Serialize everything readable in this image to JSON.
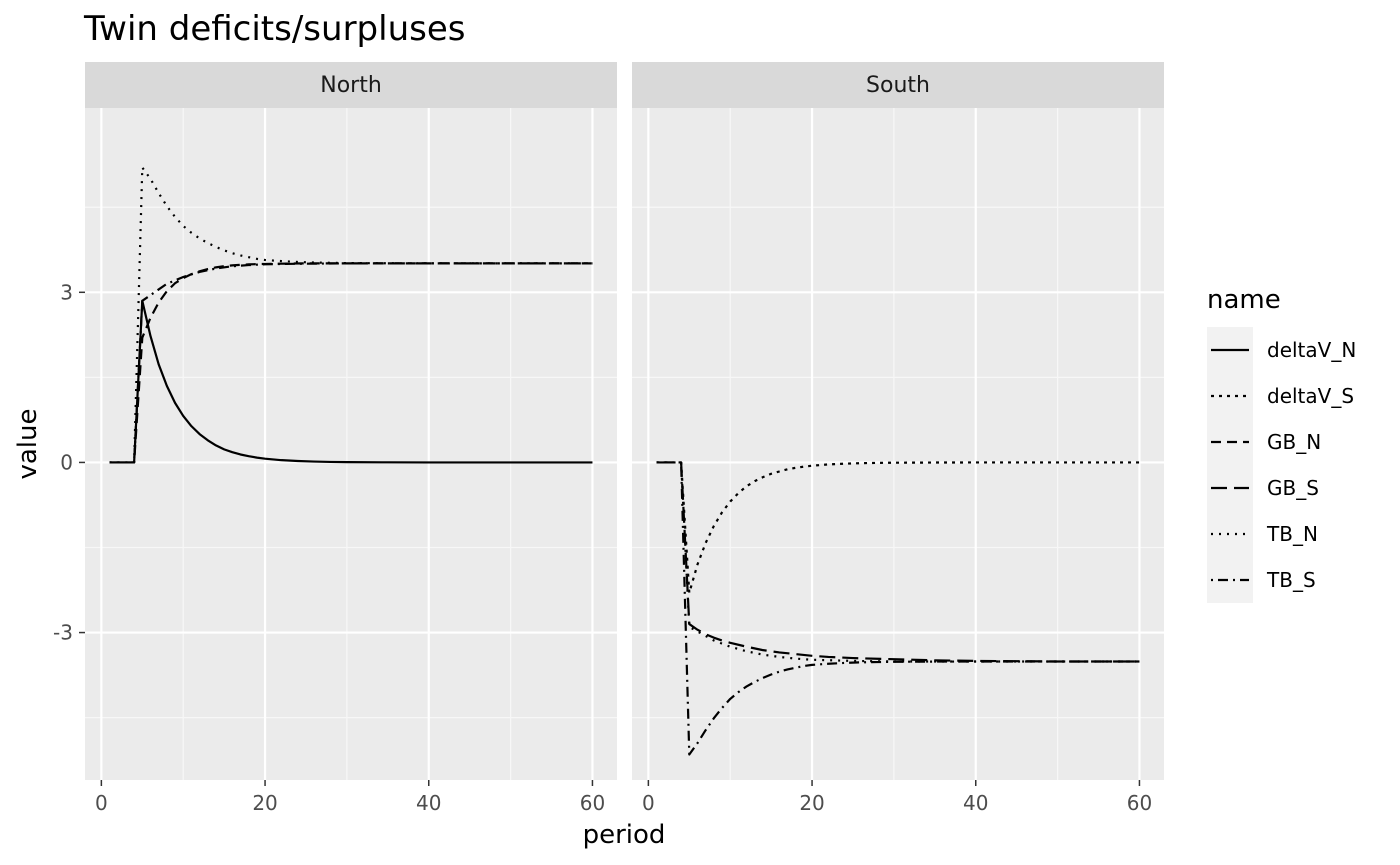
{
  "chart_data": {
    "type": "line",
    "title": "Twin deficits/surpluses",
    "xlabel": "period",
    "ylabel": "value",
    "xlim": [
      -2,
      63
    ],
    "ylim": [
      -5.6,
      6.25
    ],
    "x_ticks": [
      0,
      20,
      40,
      60
    ],
    "x_minor_ticks": [
      10,
      30,
      50
    ],
    "y_ticks": [
      -3,
      0,
      3
    ],
    "y_minor_ticks": [
      -4.5,
      -1.5,
      1.5,
      4.5
    ],
    "y_tick_labels": [
      "-3",
      "0",
      "3"
    ],
    "grid": true,
    "legend": {
      "title": "name",
      "position": "right"
    },
    "facets": [
      {
        "label": "North",
        "series": [
          {
            "name": "deltaV_N",
            "dash": "solid",
            "points": [
              [
                1,
                0
              ],
              [
                2,
                0
              ],
              [
                3,
                0
              ],
              [
                4,
                0
              ],
              [
                5,
                2.85
              ],
              [
                6,
                2.23
              ],
              [
                7,
                1.73
              ],
              [
                8,
                1.35
              ],
              [
                9,
                1.05
              ],
              [
                10,
                0.82
              ],
              [
                11,
                0.64
              ],
              [
                12,
                0.5
              ],
              [
                13,
                0.39
              ],
              [
                14,
                0.3
              ],
              [
                15,
                0.23
              ],
              [
                16,
                0.18
              ],
              [
                17,
                0.14
              ],
              [
                18,
                0.11
              ],
              [
                19,
                0.085
              ],
              [
                20,
                0.066
              ],
              [
                22,
                0.04
              ],
              [
                24,
                0.025
              ],
              [
                26,
                0.015
              ],
              [
                28,
                0.009
              ],
              [
                30,
                0.005
              ],
              [
                35,
                0.002
              ],
              [
                40,
                0
              ],
              [
                45,
                0
              ],
              [
                50,
                0
              ],
              [
                55,
                0
              ],
              [
                60,
                0
              ]
            ]
          },
          {
            "name": "deltaV_S",
            "dash": "dotted",
            "points": []
          },
          {
            "name": "GB_N",
            "dash": "dashed",
            "points": [
              [
                1,
                0
              ],
              [
                2,
                0
              ],
              [
                3,
                0
              ],
              [
                4,
                0
              ],
              [
                5,
                2.2
              ],
              [
                6,
                2.55
              ],
              [
                7,
                2.82
              ],
              [
                8,
                3.02
              ],
              [
                9,
                3.16
              ],
              [
                10,
                3.25
              ],
              [
                11,
                3.32
              ],
              [
                12,
                3.37
              ],
              [
                13,
                3.41
              ],
              [
                14,
                3.44
              ],
              [
                15,
                3.46
              ],
              [
                16,
                3.475
              ],
              [
                17,
                3.485
              ],
              [
                18,
                3.492
              ],
              [
                19,
                3.497
              ],
              [
                20,
                3.5
              ],
              [
                22,
                3.505
              ],
              [
                25,
                3.51
              ],
              [
                30,
                3.51
              ],
              [
                40,
                3.51
              ],
              [
                50,
                3.51
              ],
              [
                60,
                3.51
              ]
            ]
          },
          {
            "name": "GB_S",
            "dash": "longdash",
            "points": []
          },
          {
            "name": "TB_N",
            "dash": "dotted-fine",
            "points": [
              [
                1,
                0
              ],
              [
                2,
                0
              ],
              [
                3,
                0
              ],
              [
                4,
                0
              ],
              [
                5,
                5.2
              ],
              [
                6,
                5.0
              ],
              [
                7,
                4.75
              ],
              [
                8,
                4.52
              ],
              [
                9,
                4.33
              ],
              [
                10,
                4.17
              ],
              [
                11,
                4.05
              ],
              [
                12,
                3.95
              ],
              [
                13,
                3.87
              ],
              [
                14,
                3.8
              ],
              [
                15,
                3.74
              ],
              [
                16,
                3.69
              ],
              [
                17,
                3.65
              ],
              [
                18,
                3.62
              ],
              [
                19,
                3.59
              ],
              [
                20,
                3.57
              ],
              [
                22,
                3.55
              ],
              [
                24,
                3.535
              ],
              [
                26,
                3.525
              ],
              [
                28,
                3.52
              ],
              [
                30,
                3.515
              ],
              [
                35,
                3.512
              ],
              [
                40,
                3.51
              ],
              [
                50,
                3.51
              ],
              [
                60,
                3.51
              ]
            ]
          },
          {
            "name": "TB_S",
            "dash": "dotdash",
            "points": [
              [
                1,
                0
              ],
              [
                2,
                0
              ],
              [
                3,
                0
              ],
              [
                4,
                0
              ],
              [
                5,
                2.85
              ],
              [
                6,
                2.95
              ],
              [
                8,
                3.15
              ],
              [
                10,
                3.27
              ],
              [
                12,
                3.36
              ],
              [
                14,
                3.42
              ],
              [
                16,
                3.46
              ],
              [
                18,
                3.48
              ],
              [
                20,
                3.495
              ],
              [
                25,
                3.505
              ],
              [
                30,
                3.51
              ],
              [
                40,
                3.51
              ],
              [
                50,
                3.51
              ],
              [
                60,
                3.51
              ]
            ]
          }
        ]
      },
      {
        "label": "South",
        "series": [
          {
            "name": "deltaV_N",
            "dash": "solid",
            "points": []
          },
          {
            "name": "deltaV_S",
            "dash": "dotted",
            "points": [
              [
                1,
                0
              ],
              [
                2,
                0
              ],
              [
                3,
                0
              ],
              [
                4,
                0
              ],
              [
                5,
                -2.3
              ],
              [
                6,
                -1.8
              ],
              [
                7,
                -1.42
              ],
              [
                8,
                -1.12
              ],
              [
                9,
                -0.88
              ],
              [
                10,
                -0.69
              ],
              [
                11,
                -0.54
              ],
              [
                12,
                -0.42
              ],
              [
                13,
                -0.33
              ],
              [
                14,
                -0.26
              ],
              [
                15,
                -0.2
              ],
              [
                16,
                -0.16
              ],
              [
                17,
                -0.12
              ],
              [
                18,
                -0.095
              ],
              [
                19,
                -0.074
              ],
              [
                20,
                -0.058
              ],
              [
                22,
                -0.035
              ],
              [
                24,
                -0.022
              ],
              [
                26,
                -0.013
              ],
              [
                28,
                -0.008
              ],
              [
                30,
                -0.005
              ],
              [
                35,
                -0.002
              ],
              [
                40,
                0
              ],
              [
                50,
                0
              ],
              [
                60,
                0
              ]
            ]
          },
          {
            "name": "GB_N",
            "dash": "dashed",
            "points": []
          },
          {
            "name": "GB_S",
            "dash": "longdash",
            "points": [
              [
                1,
                0
              ],
              [
                2,
                0
              ],
              [
                3,
                0
              ],
              [
                4,
                0
              ],
              [
                5,
                -2.85
              ],
              [
                6,
                -2.95
              ],
              [
                7,
                -3.03
              ],
              [
                8,
                -3.09
              ],
              [
                9,
                -3.14
              ],
              [
                10,
                -3.18
              ],
              [
                12,
                -3.25
              ],
              [
                14,
                -3.31
              ],
              [
                16,
                -3.35
              ],
              [
                18,
                -3.38
              ],
              [
                20,
                -3.41
              ],
              [
                22,
                -3.43
              ],
              [
                25,
                -3.45
              ],
              [
                30,
                -3.47
              ],
              [
                35,
                -3.49
              ],
              [
                40,
                -3.5
              ],
              [
                50,
                -3.51
              ],
              [
                60,
                -3.51
              ]
            ]
          },
          {
            "name": "TB_N",
            "dash": "dotted-fine",
            "points": [
              [
                1,
                0
              ],
              [
                2,
                0
              ],
              [
                3,
                0
              ],
              [
                4,
                0
              ],
              [
                5,
                -2.9
              ],
              [
                6,
                -2.98
              ],
              [
                8,
                -3.14
              ],
              [
                10,
                -3.25
              ],
              [
                12,
                -3.33
              ],
              [
                14,
                -3.39
              ],
              [
                16,
                -3.43
              ],
              [
                18,
                -3.46
              ],
              [
                20,
                -3.48
              ],
              [
                25,
                -3.5
              ],
              [
                30,
                -3.51
              ],
              [
                40,
                -3.51
              ],
              [
                50,
                -3.51
              ],
              [
                60,
                -3.51
              ]
            ]
          },
          {
            "name": "TB_S",
            "dash": "dotdash",
            "points": [
              [
                1,
                0
              ],
              [
                2,
                0
              ],
              [
                3,
                0
              ],
              [
                4,
                0
              ],
              [
                5,
                -5.15
              ],
              [
                6,
                -4.95
              ],
              [
                7,
                -4.72
              ],
              [
                8,
                -4.51
              ],
              [
                9,
                -4.33
              ],
              [
                10,
                -4.17
              ],
              [
                11,
                -4.05
              ],
              [
                12,
                -3.95
              ],
              [
                13,
                -3.87
              ],
              [
                14,
                -3.8
              ],
              [
                15,
                -3.74
              ],
              [
                16,
                -3.69
              ],
              [
                17,
                -3.65
              ],
              [
                18,
                -3.62
              ],
              [
                19,
                -3.59
              ],
              [
                20,
                -3.57
              ],
              [
                22,
                -3.55
              ],
              [
                24,
                -3.535
              ],
              [
                26,
                -3.525
              ],
              [
                28,
                -3.52
              ],
              [
                30,
                -3.515
              ],
              [
                35,
                -3.512
              ],
              [
                40,
                -3.51
              ],
              [
                50,
                -3.51
              ],
              [
                60,
                -3.51
              ]
            ]
          }
        ]
      }
    ],
    "legend_entries": [
      {
        "name": "deltaV_N",
        "dash": "solid"
      },
      {
        "name": "deltaV_S",
        "dash": "dotted"
      },
      {
        "name": "GB_N",
        "dash": "dashed"
      },
      {
        "name": "GB_S",
        "dash": "longdash"
      },
      {
        "name": "TB_N",
        "dash": "dotted-fine"
      },
      {
        "name": "TB_S",
        "dash": "dotdash"
      }
    ],
    "colors": {
      "panel_bg": "#ebebeb",
      "strip_bg": "#d9d9d9",
      "grid_major": "#ffffff",
      "grid_minor": "#f7f7f7",
      "line": "#000000",
      "legend_key_bg": "#f2f2f2"
    }
  }
}
